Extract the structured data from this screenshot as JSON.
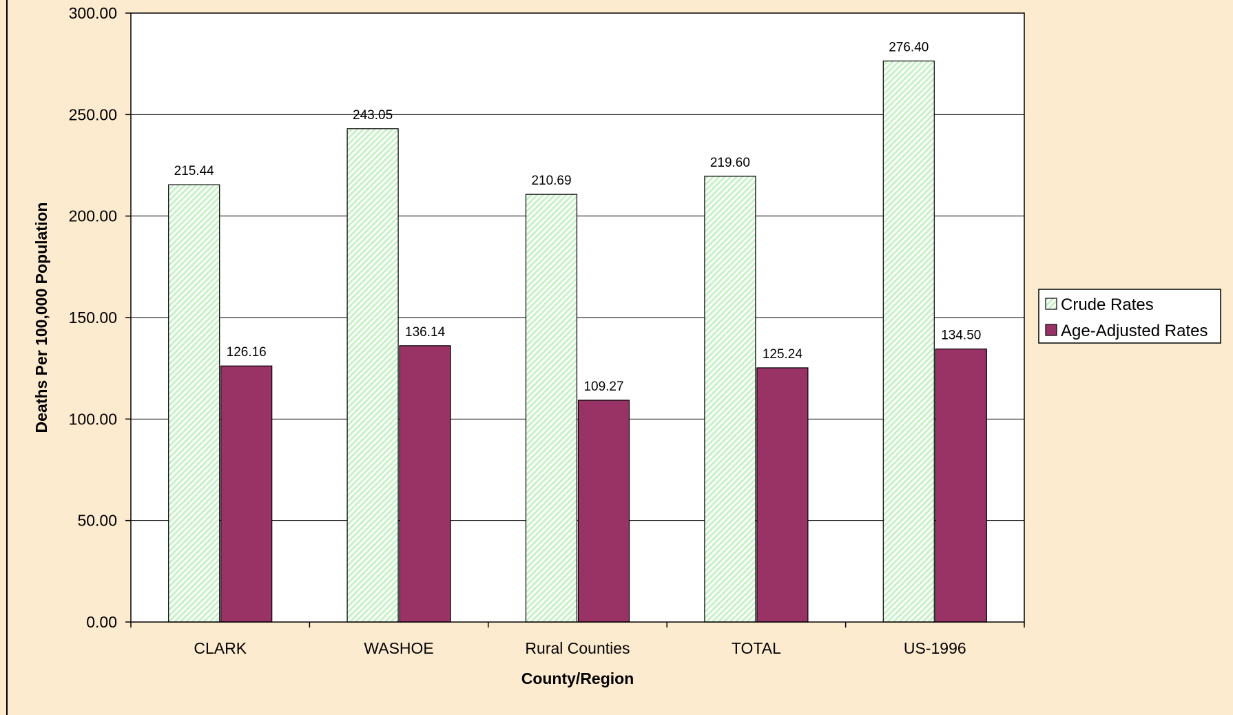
{
  "chart_data": {
    "type": "bar",
    "title": "",
    "xlabel": "County/Region",
    "ylabel": "Deaths Per 100,000 Population",
    "categories": [
      "CLARK",
      "WASHOE",
      "Rural Counties",
      "TOTAL",
      "US-1996"
    ],
    "series": [
      {
        "name": "Crude Rates",
        "values": [
          215.44,
          243.05,
          210.69,
          219.6,
          276.4
        ],
        "color": "#ccf5cc",
        "pattern": "diagonal-hatch"
      },
      {
        "name": "Age-Adjusted Rates",
        "values": [
          126.16,
          136.14,
          109.27,
          125.24,
          134.5
        ],
        "color": "#993366"
      }
    ],
    "ylim": [
      0,
      300
    ],
    "yticks": [
      "0.00",
      "50.00",
      "100.00",
      "150.00",
      "200.00",
      "250.00",
      "300.00"
    ],
    "value_labels": [
      [
        "215.44",
        "243.05",
        "210.69",
        "219.60",
        "276.40"
      ],
      [
        "126.16",
        "136.14",
        "109.27",
        "125.24",
        "134.50"
      ]
    ],
    "grid": true,
    "legend_position": "right",
    "plot_background": "#ffffff",
    "page_background": "#fdebd0"
  }
}
